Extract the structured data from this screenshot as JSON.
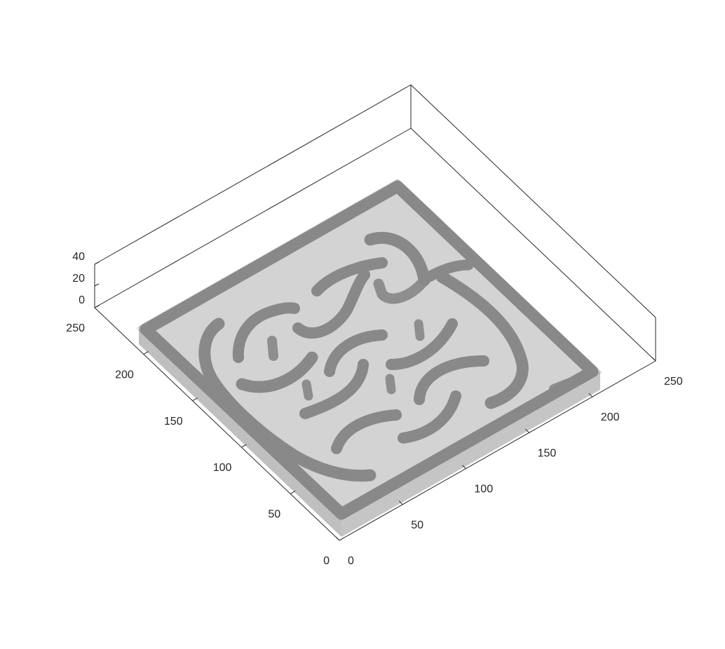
{
  "figure": {
    "kind": "3d-surface-voxel",
    "colors": {
      "background": "#ffffff",
      "axes": "#262626",
      "slab_top": "#d2d2d2",
      "slab_side": "#c4c4c4",
      "walls": "#8f8f8f"
    }
  },
  "chart_data": {
    "type": "3d-voxel",
    "title": "",
    "xlabel": "",
    "ylabel": "",
    "zlabel": "",
    "xlim": [
      0,
      250
    ],
    "ylim": [
      0,
      250
    ],
    "zlim": [
      0,
      40
    ],
    "x_ticks": [
      "0",
      "50",
      "100",
      "150",
      "200",
      "250"
    ],
    "y_ticks": [
      "0",
      "50",
      "100",
      "150",
      "200",
      "250"
    ],
    "z_ticks": [
      "0",
      "20",
      "40"
    ],
    "grid": false
  }
}
